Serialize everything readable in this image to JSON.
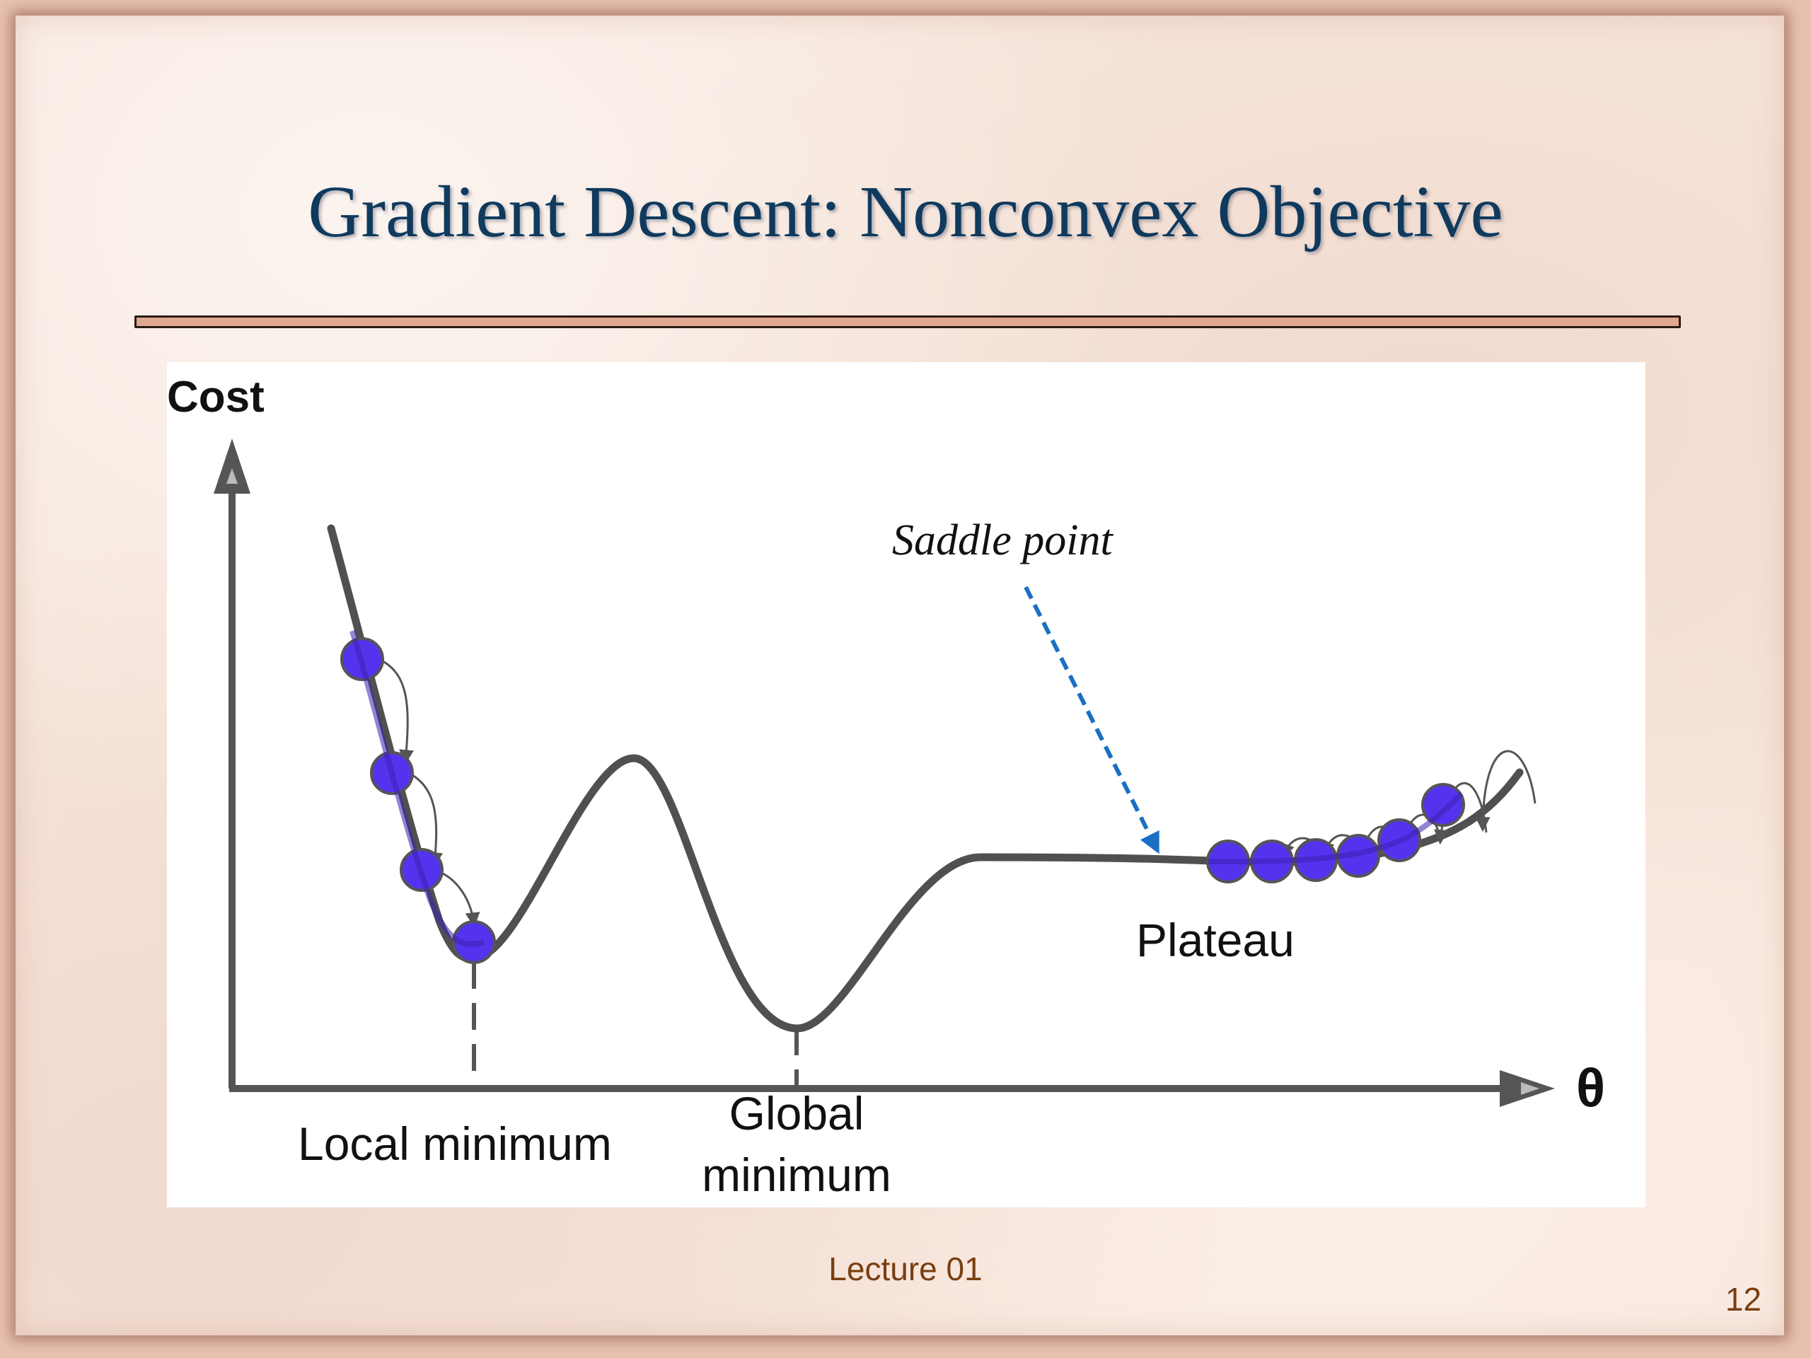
{
  "slide": {
    "title": "Gradient Descent: Nonconvex Objective",
    "footer": "Lecture 01",
    "page_number": "12"
  },
  "figure": {
    "y_axis_label": "Cost",
    "x_axis_label": "θ",
    "annotations": {
      "saddle_point": "Saddle point",
      "plateau": "Plateau",
      "local_minimum": "Local minimum",
      "global_minimum_line1": "Global",
      "global_minimum_line2": "minimum"
    },
    "colors": {
      "curve": "#505050",
      "ball_fill": "#5533ee",
      "ball_stroke": "#555555",
      "saddle_arrow": "#1a6fc2"
    }
  }
}
